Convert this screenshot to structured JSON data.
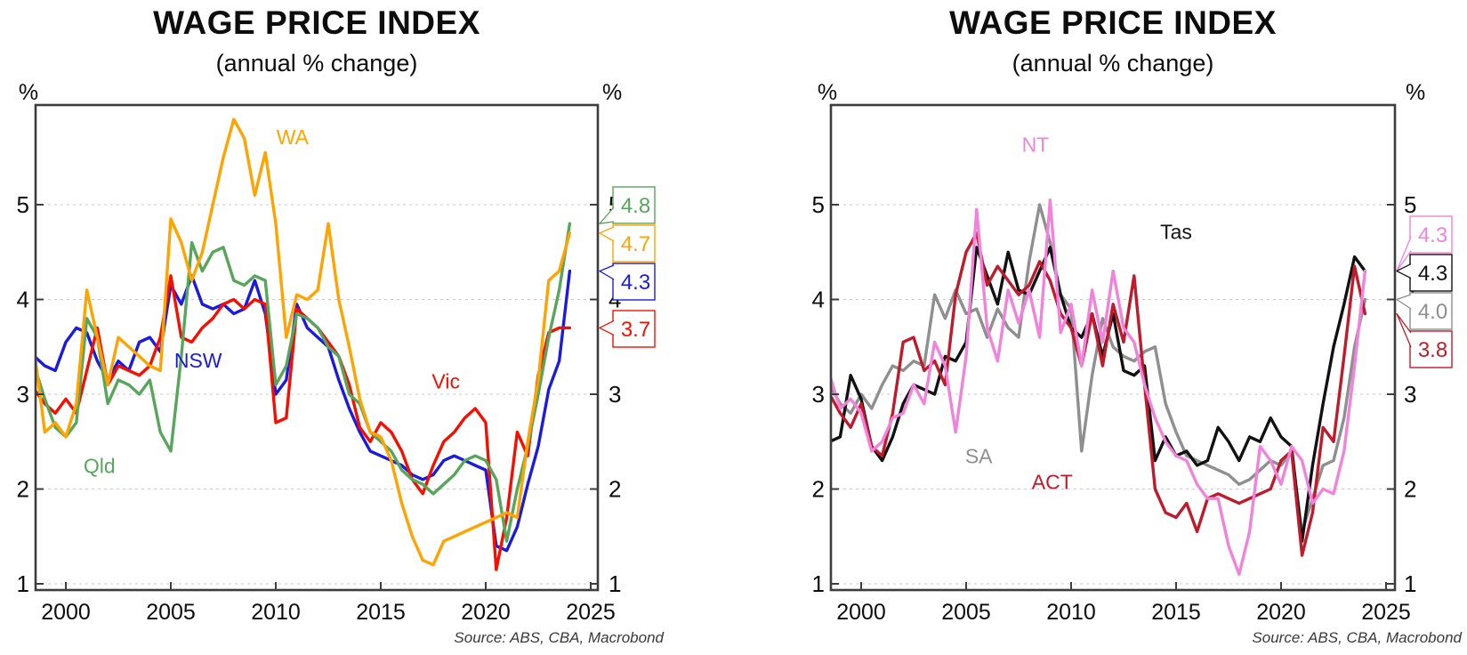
{
  "chart_data": [
    {
      "type": "line",
      "title": "WAGE PRICE INDEX",
      "subtitle": "(annual % change)",
      "unit_left": "%",
      "unit_right": "%",
      "source": "Source: ABS, CBA, Macrobond",
      "x": {
        "start": 1998.5,
        "step": 0.5,
        "points": 52
      },
      "xlim": [
        1998.5,
        2025.3
      ],
      "ylim": [
        0.9,
        6.05
      ],
      "x_ticks": [
        2000,
        2005,
        2010,
        2015,
        2020,
        2025
      ],
      "y_ticks": [
        1,
        2,
        3,
        4,
        5
      ],
      "grid": true,
      "legend_position": "inline-labels",
      "series": [
        {
          "name": "NSW",
          "color": "#1b1be0",
          "end_label": "4.3",
          "values": [
            3.4,
            3.3,
            3.25,
            3.55,
            3.7,
            3.65,
            3.35,
            3.15,
            3.35,
            3.25,
            3.55,
            3.6,
            3.45,
            4.15,
            3.95,
            4.25,
            3.95,
            3.9,
            3.95,
            3.85,
            3.9,
            4.2,
            3.85,
            3.0,
            3.15,
            3.95,
            3.7,
            3.6,
            3.5,
            3.15,
            2.85,
            2.6,
            2.4,
            2.35,
            2.3,
            2.25,
            2.15,
            2.1,
            2.15,
            2.3,
            2.35,
            2.3,
            2.25,
            2.2,
            1.4,
            1.35,
            1.6,
            2.05,
            2.45,
            3.05,
            3.35,
            4.3
          ]
        },
        {
          "name": "Vic",
          "color": "#f50f00",
          "end_label": "3.7",
          "values": [
            3.05,
            2.9,
            2.8,
            2.95,
            2.8,
            3.25,
            3.7,
            3.1,
            3.3,
            3.25,
            3.2,
            3.3,
            3.6,
            4.25,
            3.6,
            3.55,
            3.7,
            3.8,
            3.95,
            4.0,
            3.9,
            4.0,
            3.95,
            2.7,
            2.75,
            3.9,
            3.8,
            3.7,
            3.55,
            3.4,
            3.1,
            2.65,
            2.5,
            2.7,
            2.6,
            2.4,
            2.1,
            1.95,
            2.25,
            2.5,
            2.6,
            2.75,
            2.85,
            2.7,
            1.15,
            1.7,
            2.6,
            2.35,
            3.2,
            3.65,
            3.7,
            3.7
          ]
        },
        {
          "name": "Qld",
          "color": "#58a55c",
          "end_label": "4.8",
          "values": [
            3.3,
            2.95,
            2.65,
            2.55,
            2.7,
            3.8,
            3.6,
            2.9,
            3.15,
            3.1,
            3.0,
            3.15,
            2.6,
            2.4,
            3.4,
            4.6,
            4.3,
            4.5,
            4.55,
            4.2,
            4.15,
            4.25,
            4.2,
            3.1,
            3.3,
            3.85,
            3.8,
            3.7,
            3.5,
            3.4,
            3.0,
            2.9,
            2.6,
            2.5,
            2.4,
            2.2,
            2.1,
            2.05,
            1.95,
            2.05,
            2.15,
            2.3,
            2.35,
            2.3,
            2.1,
            1.45,
            2.0,
            2.45,
            3.0,
            3.6,
            4.1,
            4.8
          ]
        },
        {
          "name": "WA",
          "color": "#ffa300",
          "end_label": "4.7",
          "values": [
            3.45,
            2.6,
            2.7,
            2.55,
            2.9,
            4.1,
            3.6,
            3.1,
            3.6,
            3.5,
            3.4,
            3.3,
            3.25,
            4.85,
            4.6,
            4.2,
            4.5,
            5.0,
            5.5,
            5.9,
            5.7,
            5.1,
            5.55,
            4.8,
            3.6,
            4.05,
            4.0,
            4.1,
            4.8,
            4.0,
            3.5,
            2.95,
            2.6,
            2.55,
            2.3,
            1.85,
            1.5,
            1.25,
            1.2,
            1.45,
            1.5,
            1.55,
            1.6,
            1.65,
            1.7,
            1.75,
            1.7,
            2.5,
            3.15,
            4.2,
            4.3,
            4.7
          ]
        }
      ],
      "series_labels": [
        {
          "text": "Qld",
          "series": "Qld",
          "x": 2001.6,
          "y": 2.17
        },
        {
          "text": "NSW",
          "series": "NSW",
          "x": 2006.3,
          "y": 3.28
        },
        {
          "text": "WA",
          "series": "WA",
          "x": 2010.8,
          "y": 5.64
        },
        {
          "text": "Vic",
          "series": "Vic",
          "x": 2018.1,
          "y": 3.06
        }
      ],
      "callouts": [
        {
          "series": "Qld",
          "label": "4.8"
        },
        {
          "series": "WA",
          "label": "4.7"
        },
        {
          "series": "NSW",
          "label": "4.3"
        },
        {
          "series": "Vic",
          "label": "3.7"
        }
      ]
    },
    {
      "type": "line",
      "title": "WAGE PRICE INDEX",
      "subtitle": "(annual % change)",
      "unit_left": "%",
      "unit_right": "%",
      "source": "Source: ABS, CBA, Macrobond",
      "x": {
        "start": 1998.5,
        "step": 0.5,
        "points": 52
      },
      "xlim": [
        1998.5,
        2025.3
      ],
      "ylim": [
        0.9,
        6.05
      ],
      "x_ticks": [
        2000,
        2005,
        2010,
        2015,
        2020,
        2025
      ],
      "y_ticks": [
        1,
        2,
        3,
        4,
        5
      ],
      "grid": true,
      "legend_position": "inline-labels",
      "series": [
        {
          "name": "SA",
          "color": "#8f8f8f",
          "end_label": "4.0",
          "values": [
            3.1,
            2.9,
            2.8,
            3.0,
            2.85,
            3.1,
            3.3,
            3.25,
            3.35,
            3.3,
            4.05,
            3.8,
            4.1,
            3.85,
            3.9,
            3.6,
            3.9,
            3.7,
            3.6,
            4.4,
            5.0,
            4.6,
            4.05,
            3.9,
            2.4,
            3.2,
            3.8,
            3.5,
            3.4,
            3.35,
            3.45,
            3.5,
            2.9,
            2.6,
            2.35,
            2.3,
            2.25,
            2.2,
            2.15,
            2.05,
            2.1,
            2.2,
            2.3,
            2.25,
            2.4,
            1.55,
            1.9,
            2.25,
            2.3,
            2.75,
            3.5,
            4.0
          ]
        },
        {
          "name": "Tas",
          "color": "#111111",
          "end_label": "4.3",
          "values": [
            2.5,
            2.55,
            3.2,
            2.95,
            2.45,
            2.3,
            2.55,
            2.9,
            3.1,
            3.05,
            3.0,
            3.4,
            3.35,
            3.55,
            4.55,
            4.25,
            3.95,
            4.5,
            4.1,
            4.05,
            4.3,
            4.55,
            4.05,
            3.7,
            3.6,
            3.85,
            3.4,
            3.85,
            3.25,
            3.2,
            3.3,
            2.3,
            2.55,
            2.35,
            2.4,
            2.25,
            2.3,
            2.65,
            2.5,
            2.3,
            2.55,
            2.5,
            2.75,
            2.55,
            2.45,
            1.45,
            2.25,
            2.9,
            3.5,
            3.95,
            4.45,
            4.3
          ]
        },
        {
          "name": "ACT",
          "color": "#bf1b2c",
          "end_label": "3.8",
          "values": [
            3.0,
            2.8,
            2.65,
            2.9,
            2.45,
            2.35,
            2.8,
            3.55,
            3.6,
            3.25,
            3.35,
            3.1,
            4.05,
            4.5,
            4.7,
            4.15,
            4.35,
            4.2,
            4.05,
            4.15,
            4.4,
            4.2,
            3.85,
            3.7,
            3.3,
            3.85,
            3.3,
            3.95,
            3.55,
            4.25,
            3.1,
            2.0,
            1.75,
            1.7,
            1.85,
            1.55,
            1.9,
            1.95,
            1.9,
            1.85,
            1.9,
            1.95,
            2.0,
            2.3,
            2.4,
            1.3,
            1.75,
            2.65,
            2.5,
            3.4,
            4.35,
            3.85
          ]
        },
        {
          "name": "NT",
          "color": "#f083db",
          "end_label": "4.3",
          "values": [
            3.2,
            2.85,
            2.95,
            2.8,
            2.4,
            2.5,
            2.75,
            2.8,
            3.1,
            2.9,
            3.55,
            3.3,
            2.6,
            3.4,
            4.95,
            3.7,
            3.35,
            4.1,
            3.75,
            4.1,
            3.6,
            5.05,
            3.65,
            3.95,
            3.3,
            4.1,
            3.55,
            4.3,
            3.7,
            3.55,
            3.1,
            2.75,
            2.5,
            2.35,
            2.3,
            2.05,
            1.9,
            1.9,
            1.4,
            1.1,
            1.55,
            2.45,
            2.3,
            2.05,
            2.45,
            2.3,
            1.85,
            2.0,
            1.95,
            2.4,
            3.3,
            4.3
          ]
        }
      ],
      "series_labels": [
        {
          "text": "NT",
          "series": "NT",
          "x": 2008.3,
          "y": 5.56
        },
        {
          "text": "Tas",
          "series": "Tas",
          "x": 2015.0,
          "y": 4.64
        },
        {
          "text": "SA",
          "series": "SA",
          "x": 2005.6,
          "y": 2.27
        },
        {
          "text": "ACT",
          "series": "ACT",
          "x": 2009.1,
          "y": 2.0
        }
      ],
      "callouts": [
        {
          "series": "NT",
          "label": "4.3"
        },
        {
          "series": "Tas",
          "label": "4.3"
        },
        {
          "series": "SA",
          "label": "4.0"
        },
        {
          "series": "ACT",
          "label": "3.8"
        }
      ]
    }
  ]
}
